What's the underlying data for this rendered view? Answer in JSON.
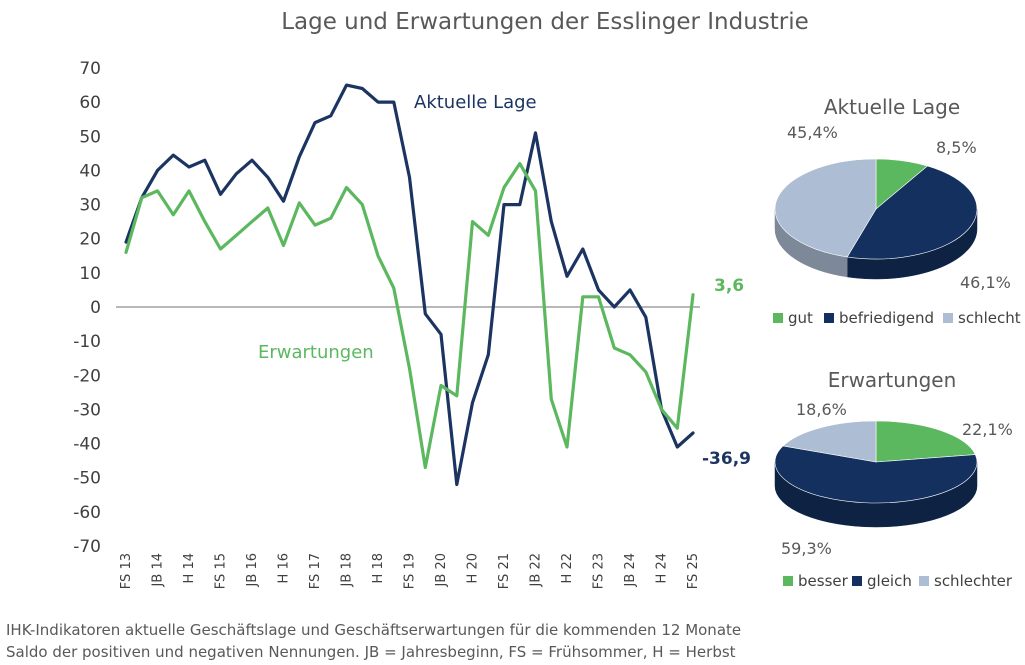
{
  "chart_data": [
    {
      "type": "line",
      "title": "Lage und Erwartungen der Esslinger Industrie",
      "xlabel": "",
      "ylabel": "",
      "ylim": [
        -70,
        70
      ],
      "yticks": [
        70,
        60,
        50,
        40,
        30,
        20,
        10,
        0,
        -10,
        -20,
        -30,
        -40,
        -50,
        -60,
        -70
      ],
      "xtick_labels": [
        "FS 13",
        "JB 14",
        "H 14",
        "FS 15",
        "JB 16",
        "H 16",
        "FS 17",
        "JB 18",
        "H 18",
        "FS 19",
        "JB 20",
        "H 20",
        "FS 21",
        "JB 22",
        "H 22",
        "FS 23",
        "JB 24",
        "H 24",
        "FS 25"
      ],
      "series": [
        {
          "name": "Aktuelle Lage",
          "color": "#1b3461",
          "end_label": "-36,9",
          "values": [
            19,
            32,
            40,
            44.5,
            41,
            43,
            33,
            39,
            43,
            38,
            31,
            44,
            54,
            56,
            65,
            64,
            60,
            60,
            38,
            -2,
            -8,
            -52,
            -28,
            -14,
            30,
            30,
            51,
            25,
            9,
            17,
            5,
            0,
            5,
            -3,
            -30,
            -41,
            -36.9
          ]
        },
        {
          "name": "Erwartungen",
          "color": "#5cb85f",
          "end_label": "3,6",
          "values": [
            16,
            32,
            34,
            27,
            34,
            25,
            17,
            21,
            25,
            29,
            18,
            30.5,
            24,
            26,
            35,
            30,
            15,
            5.5,
            -18,
            -47,
            -23,
            -26,
            25,
            21,
            35,
            42,
            34,
            -27,
            -41,
            3,
            3,
            -12,
            -14,
            -19,
            -30,
            -35.5,
            3.6
          ]
        }
      ]
    },
    {
      "type": "pie",
      "title": "Aktuelle Lage",
      "categories": [
        "gut",
        "befriedigend",
        "schlecht"
      ],
      "values": [
        8.5,
        46.1,
        45.4
      ],
      "labels": [
        "8,5%",
        "46,1%",
        "45,4%"
      ],
      "colors": [
        "#5cb85f",
        "#13305f",
        "#adbdd3"
      ]
    },
    {
      "type": "pie",
      "title": "Erwartungen",
      "categories": [
        "besser",
        "gleich",
        "schlechter"
      ],
      "values": [
        22.1,
        59.3,
        18.6
      ],
      "labels": [
        "22,1%",
        "59,3%",
        "18,6%"
      ],
      "colors": [
        "#5cb85f",
        "#13305f",
        "#adbdd3"
      ]
    }
  ],
  "footer": {
    "line1": "IHK-Indikatoren aktuelle Geschäftslage und Geschäftserwartungen für die kommenden 12 Monate",
    "line2": "Saldo der positiven und negativen Nennungen. JB = Jahresbeginn, FS = Frühsommer, H = Herbst"
  }
}
